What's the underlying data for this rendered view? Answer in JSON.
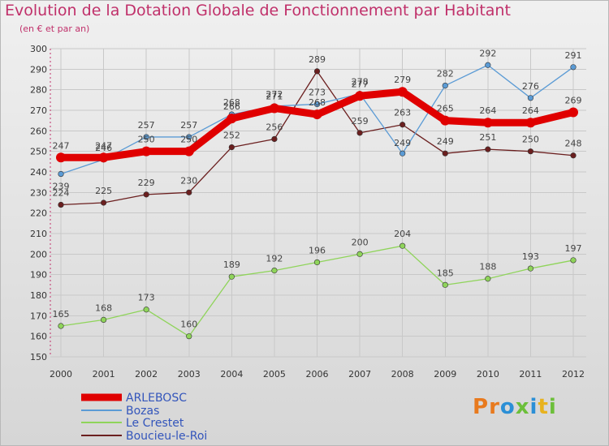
{
  "page": {
    "title": "Evolution de la Dotation Globale de Fonctionnement par Habitant",
    "subtitle": "(en € et par an)",
    "logo": "Proxiti"
  },
  "colors": {
    "title": "#c0306a",
    "logo_letters": [
      "#e87a1e",
      "#e87a1e",
      "#2b8fd6",
      "#6cbf3a",
      "#2b8fd6",
      "#e8b21e",
      "#6cbf3a"
    ]
  },
  "chart_data": {
    "type": "line",
    "title": "Evolution de la Dotation Globale de Fonctionnement par Habitant",
    "subtitle": "(en € et par an)",
    "xlabel": "",
    "ylabel": "",
    "ylim": [
      150,
      300
    ],
    "yticks": [
      150,
      160,
      170,
      180,
      190,
      200,
      210,
      220,
      230,
      240,
      250,
      260,
      270,
      280,
      290,
      300
    ],
    "x": [
      "2000",
      "2001",
      "2002",
      "2003",
      "2004",
      "2005",
      "2006",
      "2007",
      "2008",
      "2009",
      "2010",
      "2011",
      "2012"
    ],
    "grid": true,
    "legend_position": "bottom-left",
    "series": [
      {
        "name": "ARLEBOSC",
        "color": "#e00000",
        "values": [
          247,
          247,
          250,
          250,
          266,
          271,
          268,
          277,
          279,
          265,
          264,
          264,
          269
        ],
        "labels": [
          "247",
          "247",
          "250",
          "250",
          "266",
          "271",
          "268",
          "277",
          "279",
          "265",
          "264",
          "264",
          "269"
        ]
      },
      {
        "name": "Bozas",
        "color": "#5b9bd5",
        "values": [
          239,
          246,
          257,
          257,
          268,
          272,
          273,
          278,
          249,
          282,
          292,
          276,
          291
        ],
        "labels": [
          "239",
          "246",
          "257",
          "257",
          "268",
          "272",
          "273",
          "278",
          "249",
          "282",
          "292",
          "276",
          "291"
        ]
      },
      {
        "name": "Le Crestet",
        "color": "#8fd45a",
        "values": [
          165,
          168,
          173,
          160,
          189,
          192,
          196,
          200,
          204,
          185,
          188,
          193,
          197
        ],
        "labels": [
          "165",
          "168",
          "173",
          "160",
          "189",
          "192",
          "196",
          "200",
          "204",
          "185",
          "188",
          "193",
          "197"
        ]
      },
      {
        "name": "Boucieu-le-Roi",
        "color": "#6b1f1f",
        "values": [
          224,
          225,
          229,
          230,
          252,
          256,
          289,
          259,
          263,
          249,
          251,
          250,
          248
        ],
        "labels": [
          "224",
          "225",
          "229",
          "230",
          "252",
          "256",
          "289",
          "259",
          "263",
          "249",
          "251",
          "250",
          "248"
        ]
      }
    ]
  }
}
